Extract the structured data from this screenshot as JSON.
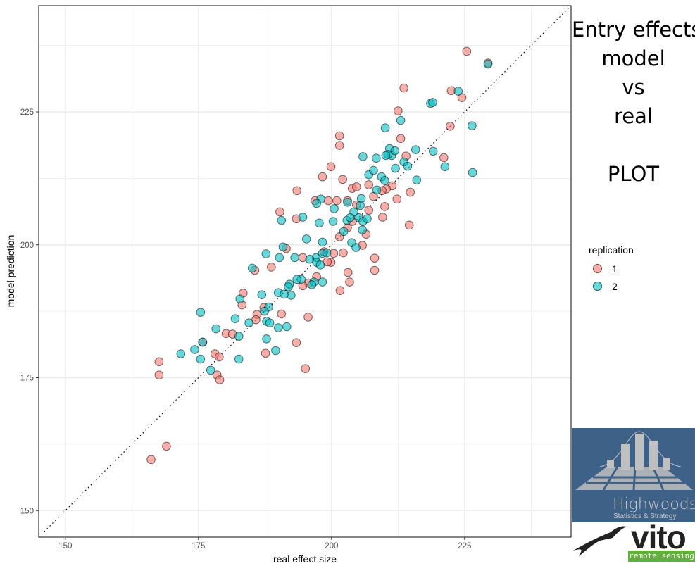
{
  "chart_data": {
    "type": "scatter",
    "title": "Entry effects\nmodel\nvs\nreal\n\nPLOT",
    "xlabel": "real effect size",
    "ylabel": "model prediction",
    "xlim": [
      145,
      245
    ],
    "ylim": [
      145,
      245
    ],
    "xticks": [
      "150",
      "175",
      "200",
      "225"
    ],
    "yticks": [
      "150",
      "175",
      "200",
      "225"
    ],
    "grid": true,
    "reference_line": "y = x (dotted)",
    "legend": {
      "title": "replication",
      "position": "right"
    },
    "colors": {
      "1": "#F8766D",
      "2": "#00BFC4"
    },
    "series": [
      {
        "name": "1",
        "points": [
          [
            225.4,
            236.4
          ],
          [
            229.4,
            234.2
          ],
          [
            213.6,
            229.5
          ],
          [
            222.5,
            229.0
          ],
          [
            224.5,
            227.7
          ],
          [
            212.5,
            225.2
          ],
          [
            201.5,
            220.5
          ],
          [
            201.5,
            218.7
          ],
          [
            222.3,
            222.3
          ],
          [
            213,
            220
          ],
          [
            221.1,
            216.4
          ],
          [
            214,
            216.7
          ],
          [
            199.9,
            214.7
          ],
          [
            198.3,
            212.8
          ],
          [
            202.1,
            212.3
          ],
          [
            193.5,
            210.2
          ],
          [
            207,
            211.3
          ],
          [
            203.9,
            210.6
          ],
          [
            204.7,
            210.9
          ],
          [
            214.8,
            209.9
          ],
          [
            211.4,
            211.1
          ],
          [
            210.3,
            210.5
          ],
          [
            209.5,
            210.2
          ],
          [
            207.9,
            209.1
          ],
          [
            212.3,
            208.6
          ],
          [
            196.9,
            208.3
          ],
          [
            199.4,
            208.3
          ],
          [
            201,
            208.3
          ],
          [
            203,
            208.3
          ],
          [
            204.7,
            207.5
          ],
          [
            190.3,
            206.2
          ],
          [
            193.4,
            204.9
          ],
          [
            210,
            207.2
          ],
          [
            209.6,
            205.2
          ],
          [
            214.6,
            203.7
          ],
          [
            207,
            206.5
          ],
          [
            203.9,
            204.4
          ],
          [
            203,
            203.2
          ],
          [
            201.5,
            201.5
          ],
          [
            206.5,
            202
          ],
          [
            205.8,
            199.9
          ],
          [
            191.5,
            199.3
          ],
          [
            194.6,
            197.6
          ],
          [
            198.6,
            198.7
          ],
          [
            200.4,
            198.4
          ],
          [
            202.2,
            198.5
          ],
          [
            199.9,
            196.7
          ],
          [
            199.2,
            196.8
          ],
          [
            208.1,
            197.5
          ],
          [
            208.1,
            195.2
          ],
          [
            203.1,
            194.8
          ],
          [
            188.7,
            195.8
          ],
          [
            197.2,
            194
          ],
          [
            195.7,
            192.8
          ],
          [
            194.6,
            192.3
          ],
          [
            203.4,
            193
          ],
          [
            201.6,
            191.4
          ],
          [
            183.4,
            190.9
          ],
          [
            183.2,
            188.7
          ],
          [
            190.6,
            187
          ],
          [
            187.3,
            188.2
          ],
          [
            186,
            186.9
          ],
          [
            185.8,
            185.9
          ],
          [
            195.6,
            186.4
          ],
          [
            180.2,
            183.3
          ],
          [
            181.4,
            183.2
          ],
          [
            175.8,
            181.7
          ],
          [
            193.4,
            181.6
          ],
          [
            187.6,
            179.6
          ],
          [
            178.1,
            179.5
          ],
          [
            178.9,
            178.9
          ],
          [
            167.6,
            178
          ],
          [
            195.1,
            176.7
          ],
          [
            167.6,
            175.5
          ],
          [
            178.5,
            175.5
          ],
          [
            179,
            174.6
          ],
          [
            169,
            162.1
          ],
          [
            166.1,
            159.6
          ],
          [
            185.6,
            195.2
          ]
        ]
      },
      {
        "name": "2",
        "points": [
          [
            229.4,
            234
          ],
          [
            223.8,
            228.9
          ],
          [
            218.6,
            226.6
          ],
          [
            219,
            226.8
          ],
          [
            213,
            223.4
          ],
          [
            226.4,
            222.4
          ],
          [
            210.1,
            222
          ],
          [
            210.9,
            218.1
          ],
          [
            211.3,
            216.8
          ],
          [
            210.6,
            217
          ],
          [
            211.9,
            217.7
          ],
          [
            210.2,
            216.8
          ],
          [
            215.8,
            217.9
          ],
          [
            219.1,
            217.6
          ],
          [
            213.6,
            215.6
          ],
          [
            208.4,
            216.3
          ],
          [
            205.9,
            216.6
          ],
          [
            212,
            214.4
          ],
          [
            214.3,
            214.8
          ],
          [
            221.3,
            214.7
          ],
          [
            226.5,
            213.6
          ],
          [
            207,
            213.2
          ],
          [
            209.4,
            212.8
          ],
          [
            216,
            212.2
          ],
          [
            210,
            212.1
          ],
          [
            207.9,
            214
          ],
          [
            208.5,
            210.3
          ],
          [
            198,
            208.6
          ],
          [
            197.2,
            207.8
          ],
          [
            200.5,
            206.8
          ],
          [
            203,
            208
          ],
          [
            205.6,
            208.7
          ],
          [
            205.4,
            207.4
          ],
          [
            204.2,
            206.2
          ],
          [
            202.9,
            204.6
          ],
          [
            203.5,
            205.1
          ],
          [
            205.1,
            205.1
          ],
          [
            205.9,
            204.4
          ],
          [
            206.7,
            204.9
          ],
          [
            200.3,
            204.4
          ],
          [
            194.6,
            205.2
          ],
          [
            197.7,
            204.1
          ],
          [
            190.6,
            204.6
          ],
          [
            202.3,
            202.5
          ],
          [
            205.8,
            202.8
          ],
          [
            195.3,
            201.1
          ],
          [
            198.3,
            200.5
          ],
          [
            203.8,
            200.4
          ],
          [
            204.6,
            199.5
          ],
          [
            190.9,
            199.6
          ],
          [
            187.7,
            198.3
          ],
          [
            193.1,
            197.6
          ],
          [
            197.1,
            197.6
          ],
          [
            195.9,
            197.3
          ],
          [
            198.3,
            198.4
          ],
          [
            199.1,
            198.5
          ],
          [
            197.2,
            196.7
          ],
          [
            197.9,
            196.2
          ],
          [
            190.2,
            197.6
          ],
          [
            185.1,
            195.6
          ],
          [
            198.3,
            193
          ],
          [
            196.7,
            193
          ],
          [
            194.3,
            193.5
          ],
          [
            193.5,
            193.5
          ],
          [
            196.3,
            192.5
          ],
          [
            192.1,
            192.6
          ],
          [
            191.9,
            192.1
          ],
          [
            190,
            191
          ],
          [
            186.9,
            190.6
          ],
          [
            192.4,
            190.5
          ],
          [
            191.1,
            190.7
          ],
          [
            182.8,
            189.8
          ],
          [
            188.2,
            188.3
          ],
          [
            187.4,
            187.5
          ],
          [
            187.8,
            185.6
          ],
          [
            188.4,
            185.3
          ],
          [
            191.6,
            184.6
          ],
          [
            190,
            184.4
          ],
          [
            184.5,
            185.3
          ],
          [
            181.9,
            186.1
          ],
          [
            175.4,
            187.3
          ],
          [
            178.3,
            184.2
          ],
          [
            182.6,
            182.8
          ],
          [
            187.8,
            182.3
          ],
          [
            175.8,
            181.7
          ],
          [
            189.5,
            180.1
          ],
          [
            171.7,
            179.5
          ],
          [
            174.3,
            180.3
          ],
          [
            175.4,
            178.5
          ],
          [
            182.6,
            178.5
          ],
          [
            177.3,
            176.4
          ]
        ]
      }
    ]
  },
  "logos": {
    "highwoods_name": "Highwoods",
    "highwoods_tagline": "Statistics & Strategy",
    "vito_name": "vito",
    "vito_tagline": "remote sensing"
  }
}
